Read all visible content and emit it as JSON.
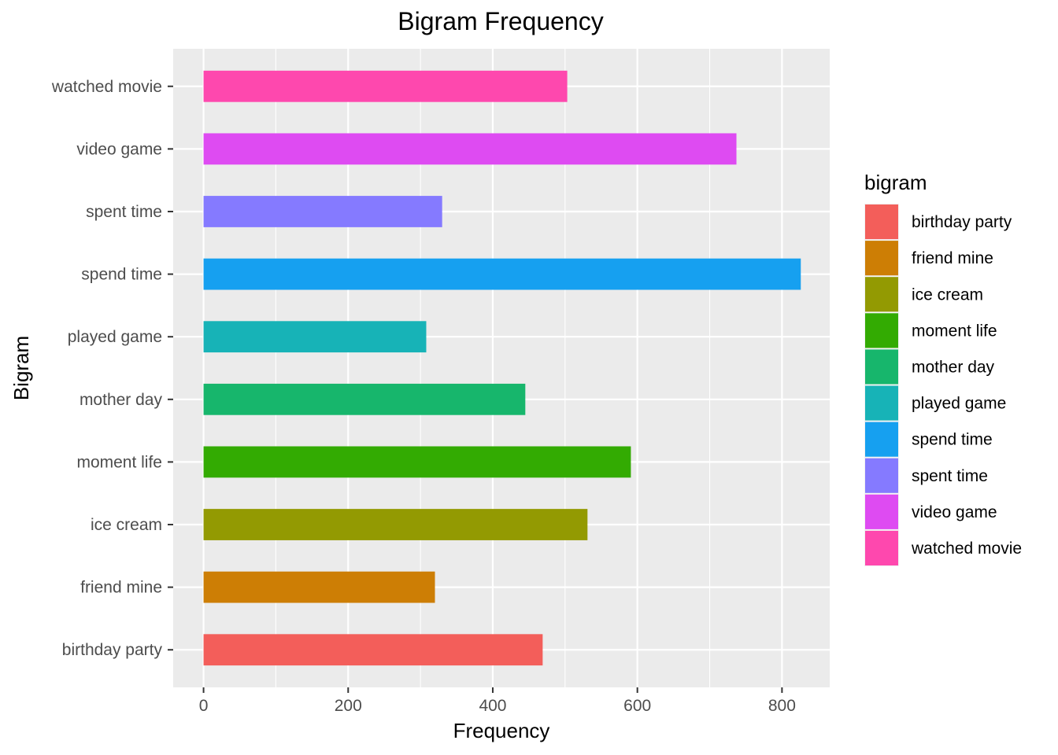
{
  "chart_data": {
    "type": "bar",
    "orientation": "horizontal",
    "title": "Bigram Frequency",
    "xlabel": "Frequency",
    "ylabel": "Bigram",
    "xlim": [
      -42,
      866
    ],
    "xticks": [
      0,
      200,
      400,
      600,
      800
    ],
    "grid": true,
    "legend_position": "right",
    "legend_title": "bigram",
    "categories": [
      "birthday party",
      "friend mine",
      "ice cream",
      "moment life",
      "mother day",
      "played game",
      "spend time",
      "spent time",
      "video game",
      "watched movie"
    ],
    "values": [
      469,
      320,
      531,
      591,
      445,
      308,
      826,
      330,
      737,
      503
    ],
    "colors": [
      "#F8766D",
      "#D39200",
      "#93AA00",
      "#00BA38",
      "#00C19F",
      "#00B9E3",
      "#00A5FF",
      "#8B93FF",
      "#DB72FB",
      "#FF61C3"
    ],
    "colors_rendered": [
      "#F35E5A",
      "#CD7E05",
      "#939A02",
      "#33AB02",
      "#17B66C",
      "#17B3B7",
      "#16A0F0",
      "#857AFF",
      "#DE4BF2",
      "#FE48AE"
    ]
  }
}
